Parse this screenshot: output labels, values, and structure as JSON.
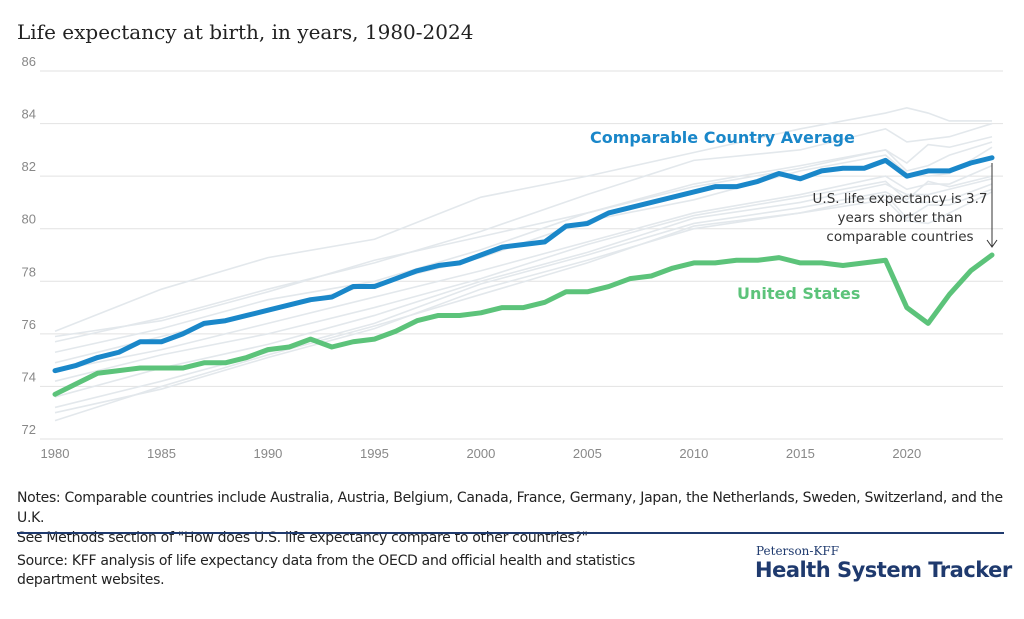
{
  "chart_data": {
    "type": "line",
    "title": "Life expectancy at birth, in years, 1980-2024",
    "xlabel": "",
    "ylabel": "",
    "xlim": [
      1980,
      2024
    ],
    "ylim": [
      72,
      86
    ],
    "x_ticks": [
      1980,
      1985,
      1990,
      1995,
      2000,
      2005,
      2010,
      2015,
      2020
    ],
    "y_ticks": [
      72,
      74,
      76,
      78,
      80,
      82,
      84,
      86
    ],
    "grid": true,
    "x": [
      1980,
      1981,
      1982,
      1983,
      1984,
      1985,
      1986,
      1987,
      1988,
      1989,
      1990,
      1991,
      1992,
      1993,
      1994,
      1995,
      1996,
      1997,
      1998,
      1999,
      2000,
      2001,
      2002,
      2003,
      2004,
      2005,
      2006,
      2007,
      2008,
      2009,
      2010,
      2011,
      2012,
      2013,
      2014,
      2015,
      2016,
      2017,
      2018,
      2019,
      2020,
      2021,
      2022,
      2023,
      2024
    ],
    "series": [
      {
        "name": "Comparable Country Average",
        "color": "#1a87c9",
        "values": [
          74.6,
          74.8,
          75.1,
          75.3,
          75.7,
          75.7,
          76.0,
          76.4,
          76.5,
          76.7,
          76.9,
          77.1,
          77.3,
          77.4,
          77.8,
          77.8,
          78.1,
          78.4,
          78.6,
          78.7,
          79.0,
          79.3,
          79.4,
          79.5,
          80.1,
          80.2,
          80.6,
          80.8,
          81.0,
          81.2,
          81.4,
          81.6,
          81.6,
          81.8,
          82.1,
          81.9,
          82.2,
          82.3,
          82.3,
          82.6,
          82.0,
          82.2,
          82.2,
          82.5,
          82.7
        ]
      },
      {
        "name": "United States",
        "color": "#5cc37a",
        "values": [
          73.7,
          74.1,
          74.5,
          74.6,
          74.7,
          74.7,
          74.7,
          74.9,
          74.9,
          75.1,
          75.4,
          75.5,
          75.8,
          75.5,
          75.7,
          75.8,
          76.1,
          76.5,
          76.7,
          76.7,
          76.8,
          77.0,
          77.0,
          77.2,
          77.6,
          77.6,
          77.8,
          78.1,
          78.2,
          78.5,
          78.7,
          78.7,
          78.8,
          78.8,
          78.9,
          78.7,
          78.7,
          78.6,
          78.7,
          78.8,
          77.0,
          76.4,
          77.5,
          78.4,
          79.0
        ]
      }
    ],
    "background_series_x": [
      1980,
      1985,
      1990,
      1995,
      2000,
      2005,
      2010,
      2015,
      2019,
      2020,
      2021,
      2022,
      2024
    ],
    "background_series_color": "#e3e8ec",
    "background_series": [
      [
        76.1,
        77.7,
        78.9,
        79.6,
        81.2,
        82.0,
        82.9,
        83.8,
        84.4,
        84.6,
        84.4,
        84.1,
        84.1
      ],
      [
        75.7,
        76.6,
        77.7,
        78.7,
        79.9,
        81.3,
        82.6,
        83.0,
        83.8,
        83.3,
        83.4,
        83.5,
        84.0
      ],
      [
        75.9,
        76.5,
        77.6,
        78.8,
        79.7,
        80.6,
        81.6,
        82.3,
        83.0,
        82.5,
        83.2,
        83.1,
        83.5
      ],
      [
        75.3,
        76.2,
        77.3,
        78.0,
        79.2,
        80.6,
        81.7,
        82.4,
        83.0,
        82.2,
        82.4,
        82.8,
        83.3
      ],
      [
        74.9,
        75.9,
        76.9,
        77.9,
        78.9,
        80.3,
        81.1,
        82.2,
        82.8,
        82.1,
        82.0,
        82.1,
        83.1
      ],
      [
        74.6,
        75.4,
        76.4,
        77.4,
        78.4,
        79.5,
        80.6,
        81.3,
        82.0,
        81.5,
        81.7,
        81.7,
        82.4
      ],
      [
        74.2,
        75.2,
        76.0,
        77.0,
        78.1,
        79.4,
        80.5,
        81.2,
        81.8,
        81.1,
        81.8,
        81.6,
        82.0
      ],
      [
        73.6,
        74.7,
        75.6,
        76.7,
        78.0,
        79.1,
        80.4,
        81.0,
        81.7,
        81.3,
        81.3,
        81.5,
        81.9
      ],
      [
        73.2,
        74.2,
        75.3,
        76.4,
        77.9,
        79.0,
        80.2,
        80.8,
        81.4,
        81.0,
        81.0,
        81.1,
        81.7
      ],
      [
        73.0,
        73.9,
        75.1,
        76.2,
        77.7,
        78.8,
        80.0,
        80.6,
        81.3,
        80.4,
        80.9,
        80.9,
        81.5
      ],
      [
        72.7,
        74.0,
        75.2,
        76.3,
        77.5,
        78.7,
        80.1,
        80.6,
        81.1,
        80.3,
        80.2,
        80.6,
        81.4
      ]
    ],
    "annotation": "U.S. life expectancy is 3.7 years shorter than comparable countries",
    "annotation_lines": [
      "U.S. life expectancy is 3.7",
      "years shorter than",
      "comparable countries"
    ]
  },
  "notes": {
    "line1": "Notes: Comparable countries include Australia, Austria, Belgium, Canada, France, Germany, Japan, the Netherlands, Sweden, Switzerland, and the U.K.",
    "line2": "See Methods section of \"How does U.S. life expectancy compare to other countries?\""
  },
  "source": "Source: KFF analysis of life expectancy data from the OECD and official health and statistics department websites.",
  "logo": {
    "top": "Peterson-KFF",
    "main": "Health System Tracker"
  }
}
